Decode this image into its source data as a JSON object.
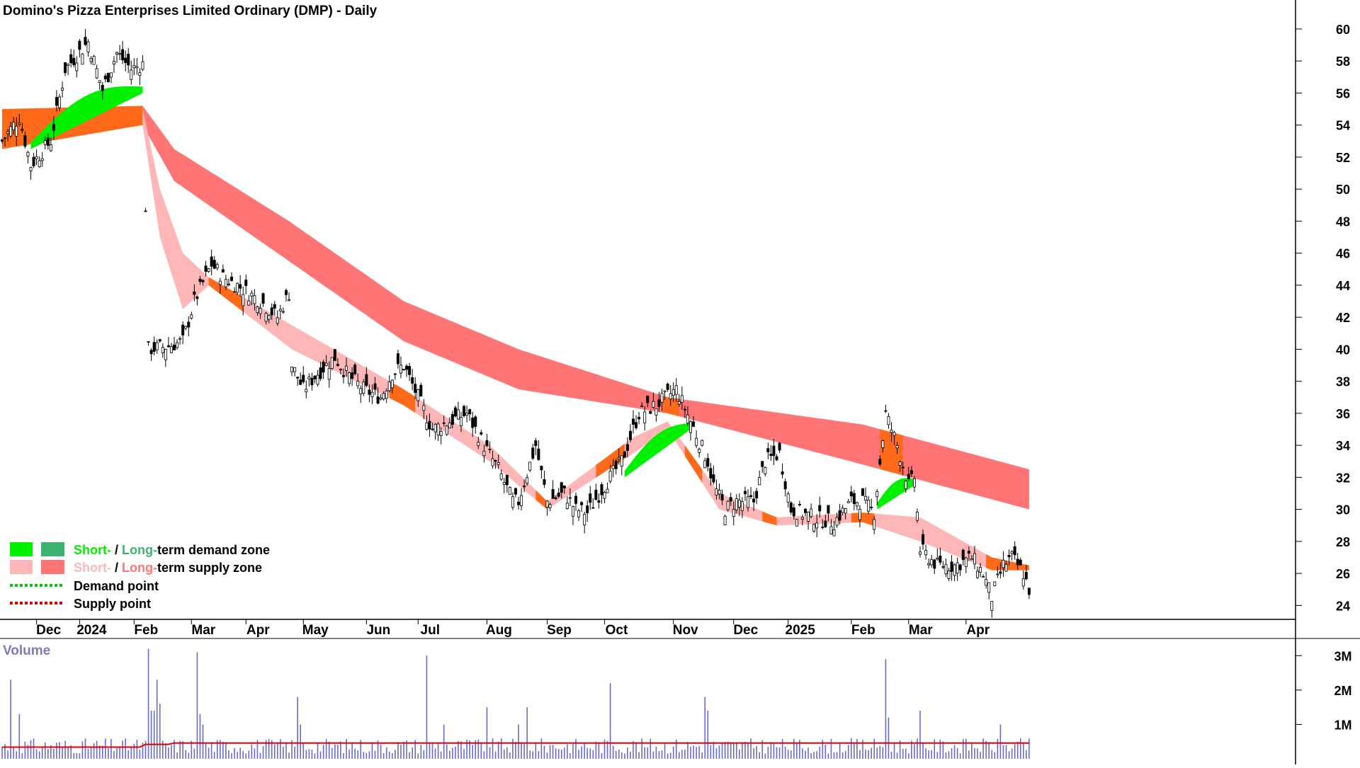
{
  "chart_data": {
    "type": "candlestick",
    "title": "Domino's Pizza Enterprises Limited Ordinary (DMP) - Daily",
    "y_axis": {
      "ticks": [
        24,
        26,
        28,
        30,
        32,
        34,
        36,
        38,
        40,
        42,
        44,
        46,
        48,
        50,
        52,
        54,
        56,
        58,
        60
      ],
      "range": [
        23,
        61.5
      ]
    },
    "x_axis": {
      "ticks": [
        "Dec",
        "2024",
        "Feb",
        "Mar",
        "Apr",
        "May",
        "Jun",
        "Jul",
        "Aug",
        "Sep",
        "Oct",
        "Nov",
        "Dec",
        "2025",
        "Feb",
        "Mar",
        "Apr"
      ],
      "tick_day_index": [
        12,
        27,
        46,
        66,
        85,
        105,
        127,
        145,
        169,
        190,
        210,
        234,
        255,
        274,
        296,
        316,
        336
      ]
    },
    "price_series": {
      "name": "DMP close",
      "anchors": [
        [
          0,
          53.0
        ],
        [
          6,
          54.5
        ],
        [
          10,
          51.5
        ],
        [
          17,
          53.0
        ],
        [
          22,
          57.5
        ],
        [
          30,
          59.2
        ],
        [
          35,
          56.2
        ],
        [
          40,
          58.5
        ],
        [
          45,
          57.5
        ],
        [
          49,
          57.8
        ],
        [
          51,
          40.0
        ],
        [
          58,
          40.2
        ],
        [
          63,
          40.5
        ],
        [
          67,
          43.0
        ],
        [
          73,
          45.3
        ],
        [
          77,
          44.5
        ],
        [
          82,
          44.0
        ],
        [
          90,
          43.0
        ],
        [
          96,
          42.0
        ],
        [
          100,
          43.5
        ],
        [
          101,
          39.0
        ],
        [
          105,
          37.5
        ],
        [
          110,
          38.5
        ],
        [
          116,
          39.5
        ],
        [
          120,
          38.5
        ],
        [
          126,
          37.5
        ],
        [
          132,
          37.0
        ],
        [
          136,
          38.5
        ],
        [
          140,
          39.0
        ],
        [
          150,
          35.0
        ],
        [
          156,
          35.5
        ],
        [
          162,
          36.0
        ],
        [
          168,
          34.0
        ],
        [
          173,
          32.5
        ],
        [
          178,
          30.5
        ],
        [
          180,
          30.5
        ],
        [
          186,
          34.0
        ],
        [
          190,
          30.5
        ],
        [
          196,
          31.0
        ],
        [
          200,
          30.0
        ],
        [
          204,
          29.8
        ],
        [
          210,
          31.5
        ],
        [
          216,
          33.0
        ],
        [
          222,
          36.0
        ],
        [
          228,
          36.5
        ],
        [
          235,
          37.5
        ],
        [
          240,
          35.5
        ],
        [
          246,
          33.0
        ],
        [
          248,
          31.5
        ],
        [
          252,
          30.0
        ],
        [
          256,
          30.5
        ],
        [
          262,
          30.5
        ],
        [
          266,
          33.0
        ],
        [
          271,
          33.5
        ],
        [
          275,
          30.0
        ],
        [
          283,
          29.5
        ],
        [
          290,
          29.2
        ],
        [
          296,
          30.5
        ],
        [
          300,
          30.5
        ],
        [
          304,
          29.8
        ],
        [
          308,
          36.0
        ],
        [
          312,
          34.0
        ],
        [
          316,
          31.5
        ],
        [
          318,
          32.0
        ],
        [
          320,
          27.5
        ],
        [
          326,
          26.5
        ],
        [
          332,
          26.5
        ],
        [
          338,
          27.0
        ],
        [
          342,
          26.0
        ],
        [
          345,
          24.5
        ],
        [
          349,
          26.5
        ],
        [
          352,
          27.0
        ],
        [
          356,
          26.0
        ],
        [
          358,
          25.0
        ]
      ]
    },
    "zones": {
      "long_term_supply": {
        "upper": [
          [
            49,
            55.2
          ],
          [
            60,
            52.5
          ],
          [
            100,
            48.0
          ],
          [
            140,
            43.0
          ],
          [
            180,
            40.0
          ],
          [
            232,
            37.0
          ],
          [
            300,
            35.3
          ],
          [
            358,
            32.5
          ]
        ],
        "lower": [
          [
            49,
            54.0
          ],
          [
            60,
            50.5
          ],
          [
            100,
            45.5
          ],
          [
            140,
            40.5
          ],
          [
            180,
            37.5
          ],
          [
            232,
            36.0
          ],
          [
            300,
            32.8
          ],
          [
            358,
            30.0
          ]
        ]
      },
      "long_term_demand": {
        "upper": [
          [
            0,
            55.0
          ],
          [
            49,
            55.2
          ]
        ],
        "lower": [
          [
            0,
            52.5
          ],
          [
            49,
            54.0
          ]
        ]
      },
      "short_term_supply": {
        "upper": [
          [
            49,
            55.0
          ],
          [
            55,
            50.0
          ],
          [
            63,
            46.0
          ],
          [
            72,
            44.5
          ],
          [
            101,
            41.5
          ],
          [
            140,
            37.5
          ],
          [
            170,
            34.0
          ],
          [
            190,
            30.5
          ],
          [
            220,
            34.5
          ],
          [
            232,
            35.5
          ],
          [
            250,
            31.0
          ],
          [
            270,
            29.5
          ],
          [
            300,
            29.8
          ],
          [
            320,
            29.5
          ],
          [
            345,
            27.0
          ],
          [
            358,
            26.5
          ]
        ],
        "lower": [
          [
            49,
            54.0
          ],
          [
            55,
            47.0
          ],
          [
            63,
            42.5
          ],
          [
            72,
            44.0
          ],
          [
            101,
            40.0
          ],
          [
            140,
            36.5
          ],
          [
            170,
            33.0
          ],
          [
            190,
            30.0
          ],
          [
            220,
            33.5
          ],
          [
            232,
            35.0
          ],
          [
            250,
            30.0
          ],
          [
            270,
            29.0
          ],
          [
            300,
            29.2
          ],
          [
            320,
            28.0
          ],
          [
            345,
            26.2
          ],
          [
            358,
            26.2
          ]
        ]
      }
    },
    "volume": {
      "label": "Volume",
      "ticks": [
        "1M",
        "2M",
        "3M"
      ],
      "tick_values": [
        1000000,
        2000000,
        3000000
      ],
      "spike_days": [
        [
          3,
          2300000
        ],
        [
          6,
          1300000
        ],
        [
          51,
          3200000
        ],
        [
          52,
          1400000
        ],
        [
          53,
          1400000
        ],
        [
          54,
          2300000
        ],
        [
          55,
          1600000
        ],
        [
          68,
          3100000
        ],
        [
          69,
          1300000
        ],
        [
          70,
          1000000
        ],
        [
          103,
          1800000
        ],
        [
          104,
          1000000
        ],
        [
          148,
          3000000
        ],
        [
          154,
          1000000
        ],
        [
          169,
          1500000
        ],
        [
          180,
          1000000
        ],
        [
          183,
          1500000
        ],
        [
          212,
          2200000
        ],
        [
          245,
          1800000
        ],
        [
          246,
          1400000
        ],
        [
          308,
          2900000
        ],
        [
          309,
          1200000
        ],
        [
          320,
          1400000
        ],
        [
          348,
          1000000
        ]
      ],
      "average_line": 400000,
      "range": [
        0,
        3500000
      ]
    },
    "legend": [
      {
        "short": "Short-",
        "sep": " / ",
        "long": "Long-",
        "rest": "term demand zone"
      },
      {
        "short": "Short-",
        "sep": " / ",
        "long": "Long-",
        "rest": "term supply zone"
      },
      {
        "label": "Demand point"
      },
      {
        "label": "Supply point"
      }
    ],
    "colors": {
      "short_demand": "#00f000",
      "long_demand": "#3cb371",
      "short_supply": "#ffb6b6",
      "long_supply": "#ff7575",
      "orange_zone": "#ff6a1a",
      "demand_point": "#00cc00",
      "supply_point": "#dd0000",
      "volume_bars": "#6a6acd",
      "volume_avg": "#dd0000",
      "candle": "#000000"
    }
  }
}
